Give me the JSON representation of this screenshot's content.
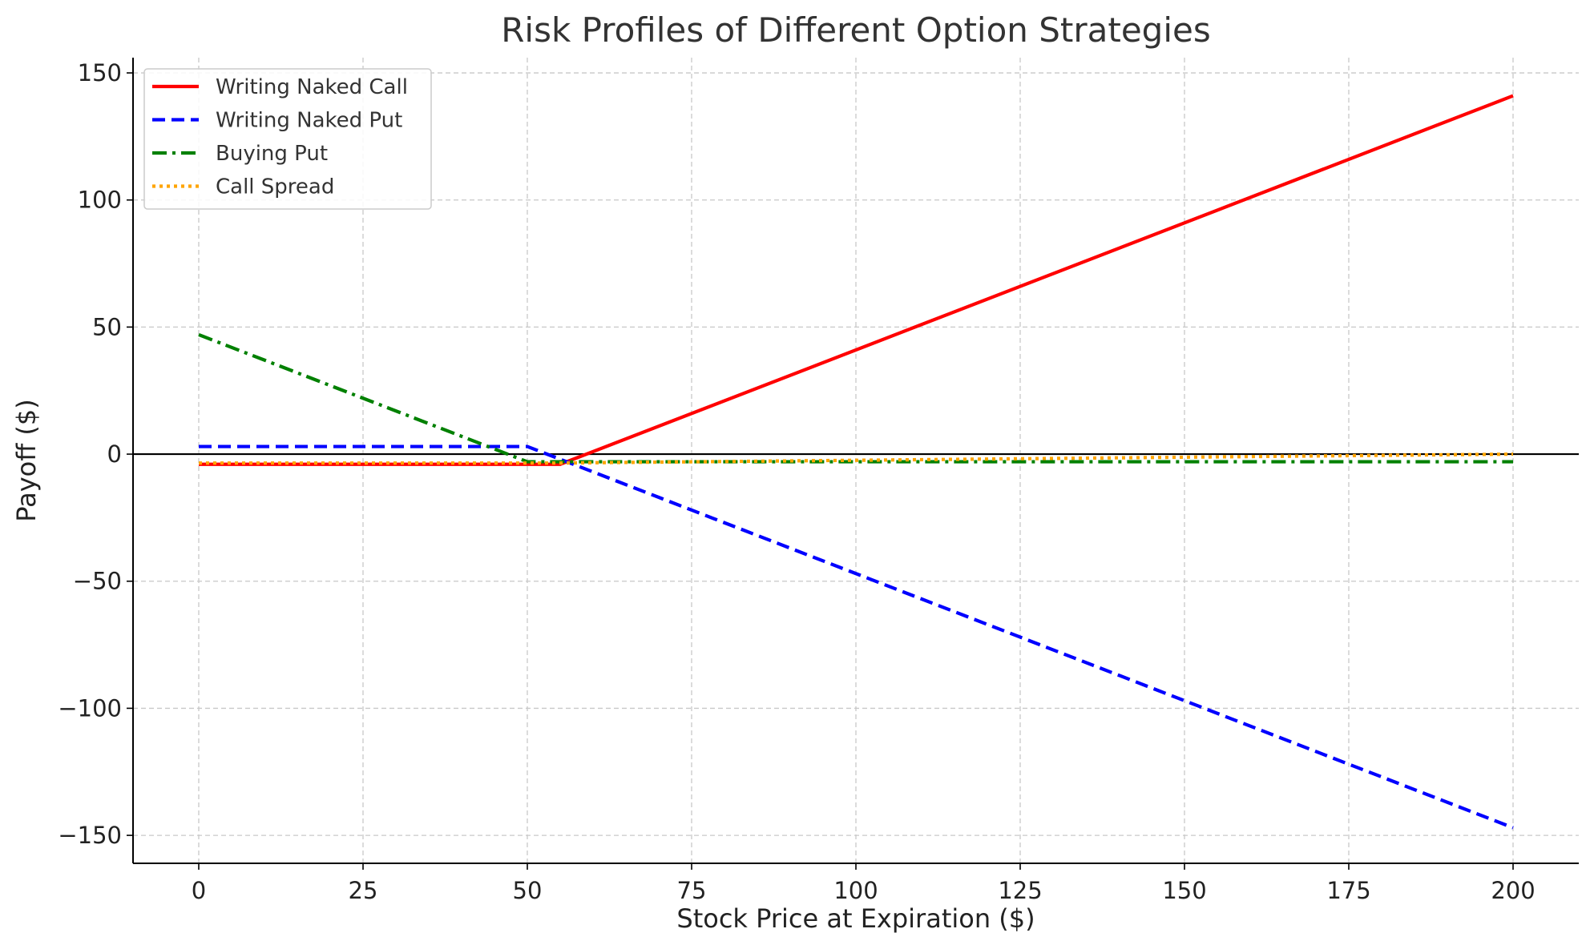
{
  "chart_data": {
    "type": "line",
    "title": "Risk Profiles of Different Option Strategies",
    "xlabel": "Stock Price at Expiration ($)",
    "ylabel": "Payoff ($)",
    "xlim": [
      -10,
      210
    ],
    "ylim": [
      -161,
      156
    ],
    "xticks": [
      0,
      25,
      50,
      75,
      100,
      125,
      150,
      175,
      200
    ],
    "xtick_labels": [
      "0",
      "25",
      "50",
      "75",
      "100",
      "125",
      "150",
      "175",
      "200"
    ],
    "yticks": [
      150,
      100,
      50,
      0,
      -50,
      -100,
      -150
    ],
    "ytick_labels": [
      "150",
      "100",
      "50",
      "0",
      "−50",
      "−100",
      "−150"
    ],
    "grid": true,
    "legend_position": "top-left",
    "reference_line_y": 0,
    "series": [
      {
        "name": "Writing Naked Call",
        "color": "#ff0000",
        "style": "solid",
        "x": [
          0,
          55,
          200
        ],
        "y": [
          -4,
          -4,
          141
        ]
      },
      {
        "name": "Writing Naked Put",
        "color": "#0000ff",
        "style": "dashed",
        "x": [
          0,
          50,
          200
        ],
        "y": [
          3,
          3,
          -147
        ]
      },
      {
        "name": "Buying Put",
        "color": "#008000",
        "style": "dashdot",
        "x": [
          0,
          50,
          200
        ],
        "y": [
          47,
          -3,
          -3
        ]
      },
      {
        "name": "Call Spread",
        "color": "#ffa500",
        "style": "dotted",
        "x": [
          0,
          55,
          200
        ],
        "y": [
          -3.5,
          -3.5,
          0
        ]
      }
    ]
  }
}
